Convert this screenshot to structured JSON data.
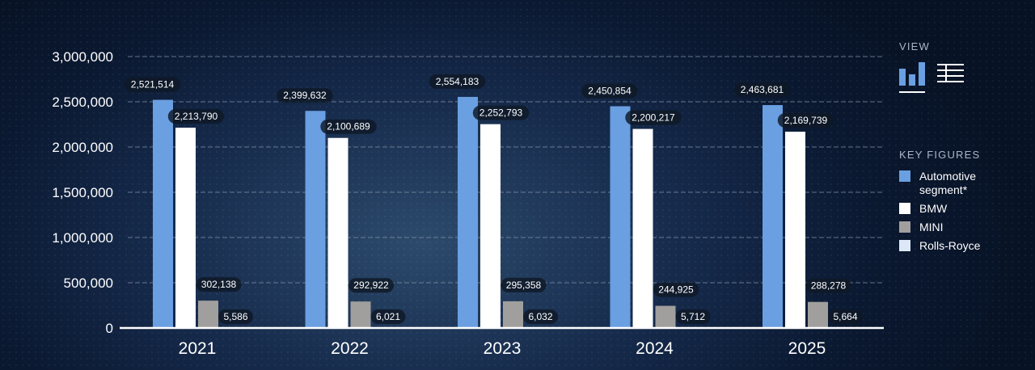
{
  "view": {
    "title": "VIEW",
    "active": "bar-chart"
  },
  "legend": {
    "title": "KEY FIGURES",
    "items": [
      {
        "label": "Automotive segment*",
        "color": "#6a9fe1"
      },
      {
        "label": "BMW",
        "color": "#ffffff"
      },
      {
        "label": "MINI",
        "color": "#a09f9d"
      },
      {
        "label": "Rolls-Royce",
        "color": "#dce8f7"
      }
    ]
  },
  "chart_data": {
    "type": "bar",
    "categories": [
      "2021",
      "2022",
      "2023",
      "2024",
      "2025"
    ],
    "series": [
      {
        "name": "Automotive segment*",
        "color": "#6a9fe1",
        "values": [
          2521514,
          2399632,
          2554183,
          2450854,
          2463681
        ],
        "labels": [
          "2,521,514",
          "2,399,632",
          "2,554,183",
          "2,450,854",
          "2,463,681"
        ]
      },
      {
        "name": "BMW",
        "color": "#ffffff",
        "values": [
          2213790,
          2100689,
          2252793,
          2200217,
          2169739
        ],
        "labels": [
          "2,213,790",
          "2,100,689",
          "2,252,793",
          "2,200,217",
          "2,169,739"
        ]
      },
      {
        "name": "MINI",
        "color": "#a09f9d",
        "values": [
          302138,
          292922,
          295358,
          244925,
          288278
        ],
        "labels": [
          "302,138",
          "292,922",
          "295,358",
          "244,925",
          "288,278"
        ]
      },
      {
        "name": "Rolls-Royce",
        "color": "#dce8f7",
        "values": [
          5586,
          6021,
          6032,
          5712,
          5664
        ],
        "labels": [
          "5,586",
          "6,021",
          "6,032",
          "5,712",
          "5,664"
        ]
      }
    ],
    "yticks": [
      0,
      500000,
      1000000,
      1500000,
      2000000,
      2500000,
      3000000
    ],
    "ytick_labels": [
      "0",
      "500,000",
      "1,000,000",
      "1,500,000",
      "2,000,000",
      "2,500,000",
      "3,000,000"
    ],
    "ylim": [
      0,
      3000000
    ],
    "grid": true,
    "legend_position": "right"
  }
}
